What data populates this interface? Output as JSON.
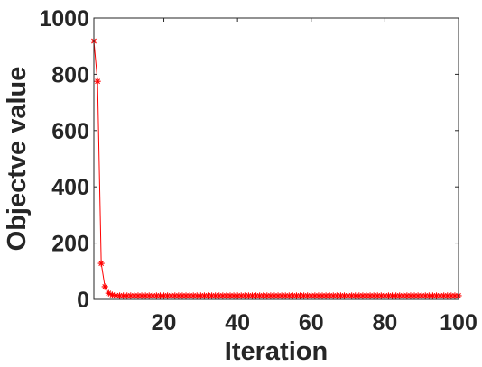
{
  "chart_data": {
    "type": "line",
    "title": "",
    "xlabel": "Iteration",
    "ylabel": "Objectve value",
    "xlim": [
      1,
      100
    ],
    "ylim": [
      0,
      1000
    ],
    "xticks": [
      20,
      40,
      60,
      80,
      100
    ],
    "yticks": [
      0,
      200,
      400,
      600,
      800,
      1000
    ],
    "grid": false,
    "legend": "none",
    "series": [
      {
        "color": "#ff0000",
        "marker": "asterisk",
        "x": [
          1,
          2,
          3,
          4,
          5,
          6,
          7,
          8,
          9,
          10,
          11,
          12,
          13,
          14,
          15,
          16,
          17,
          18,
          19,
          20,
          21,
          22,
          23,
          24,
          25,
          26,
          27,
          28,
          29,
          30,
          31,
          32,
          33,
          34,
          35,
          36,
          37,
          38,
          39,
          40,
          41,
          42,
          43,
          44,
          45,
          46,
          47,
          48,
          49,
          50,
          51,
          52,
          53,
          54,
          55,
          56,
          57,
          58,
          59,
          60,
          61,
          62,
          63,
          64,
          65,
          66,
          67,
          68,
          69,
          70,
          71,
          72,
          73,
          74,
          75,
          76,
          77,
          78,
          79,
          80,
          81,
          82,
          83,
          84,
          85,
          86,
          87,
          88,
          89,
          90,
          91,
          92,
          93,
          94,
          95,
          96,
          97,
          98,
          99,
          100
        ],
        "y": [
          918,
          775,
          128,
          45,
          22,
          16,
          14,
          13,
          13,
          13,
          13,
          13,
          13,
          13,
          13,
          13,
          13,
          13,
          13,
          13,
          13,
          13,
          13,
          13,
          13,
          13,
          13,
          13,
          13,
          13,
          13,
          13,
          13,
          13,
          13,
          13,
          13,
          13,
          13,
          13,
          13,
          13,
          13,
          13,
          13,
          13,
          13,
          13,
          13,
          13,
          13,
          13,
          13,
          13,
          13,
          13,
          13,
          13,
          13,
          13,
          13,
          13,
          13,
          13,
          13,
          13,
          13,
          13,
          13,
          13,
          13,
          13,
          13,
          13,
          13,
          13,
          13,
          13,
          13,
          13,
          13,
          13,
          13,
          13,
          13,
          13,
          13,
          13,
          13,
          13,
          13,
          13,
          13,
          13,
          13,
          13,
          13,
          13,
          13,
          13
        ]
      }
    ]
  }
}
